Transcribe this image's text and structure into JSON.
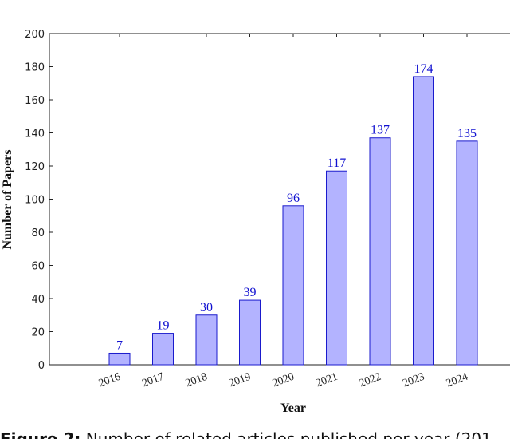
{
  "chart_data": {
    "type": "bar",
    "categories": [
      "2016",
      "2017",
      "2018",
      "2019",
      "2020",
      "2021",
      "2022",
      "2023",
      "2024"
    ],
    "values": [
      7,
      19,
      30,
      39,
      96,
      117,
      137,
      174,
      135
    ],
    "color": "#b3b3ff",
    "edge_color": "#1a1acc",
    "label_color": "#1010d0",
    "ylim": [
      0,
      200
    ],
    "yticks": [
      0,
      20,
      40,
      60,
      80,
      100,
      120,
      140,
      160,
      180,
      200
    ],
    "xlabel": "Year",
    "ylabel": "Number of Papers",
    "grid": false,
    "caption": {
      "label": "Figure 2:",
      "text": "Number of related articles published per year (201"
    }
  }
}
